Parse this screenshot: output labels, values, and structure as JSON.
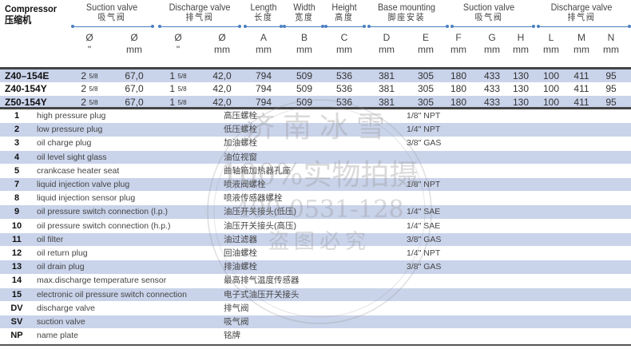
{
  "header": {
    "compressor_en": "Compressor",
    "compressor_cn": "压缩机",
    "groups": [
      {
        "en": "Suction valve",
        "cn": "吸气阀"
      },
      {
        "en": "Discharge valve",
        "cn": "排气阀"
      },
      {
        "en": "Length",
        "cn": "长度"
      },
      {
        "en": "Width",
        "cn": "宽度"
      },
      {
        "en": "Height",
        "cn": "高度"
      },
      {
        "en": "Base mounting",
        "cn": "脚座安装"
      },
      {
        "en": "Suction valve",
        "cn": "吸气阀"
      },
      {
        "en": "Discharge valve",
        "cn": "排气阀"
      }
    ],
    "units": [
      {
        "a": "Ø",
        "b": "\""
      },
      {
        "a": "Ø",
        "b": "mm"
      },
      {
        "a": "Ø",
        "b": "\""
      },
      {
        "a": "Ø",
        "b": "mm"
      },
      {
        "a": "A",
        "b": "mm"
      },
      {
        "a": "B",
        "b": "mm"
      },
      {
        "a": "C",
        "b": "mm"
      },
      {
        "a": "D",
        "b": "mm"
      },
      {
        "a": "E",
        "b": "mm"
      },
      {
        "a": "F",
        "b": "mm"
      },
      {
        "a": "G",
        "b": "mm"
      },
      {
        "a": "H",
        "b": "mm"
      },
      {
        "a": "L",
        "b": "mm"
      },
      {
        "a": "M",
        "b": "mm"
      },
      {
        "a": "N",
        "b": "mm"
      }
    ]
  },
  "models": [
    {
      "name": "Z40–154E",
      "suction_in": "2",
      "suction_frac": "5/8",
      "suction_mm": "67,0",
      "discharge_in": "1",
      "discharge_frac": "5/8",
      "discharge_mm": "42,0",
      "A": "794",
      "B": "509",
      "C": "536",
      "D": "381",
      "E": "305",
      "F": "180",
      "G": "433",
      "H": "130",
      "L": "100",
      "M": "411",
      "N": "95"
    },
    {
      "name": "Z40-154Y",
      "suction_in": "2",
      "suction_frac": "5/8",
      "suction_mm": "67,0",
      "discharge_in": "1",
      "discharge_frac": "5/8",
      "discharge_mm": "42,0",
      "A": "794",
      "B": "509",
      "C": "536",
      "D": "381",
      "E": "305",
      "F": "180",
      "G": "433",
      "H": "130",
      "L": "100",
      "M": "411",
      "N": "95"
    },
    {
      "name": "Z50-154Y",
      "suction_in": "2",
      "suction_frac": "5/8",
      "suction_mm": "67,0",
      "discharge_in": "1",
      "discharge_frac": "5/8",
      "discharge_mm": "42,0",
      "A": "794",
      "B": "509",
      "C": "536",
      "D": "381",
      "E": "305",
      "F": "180",
      "G": "433",
      "H": "130",
      "L": "100",
      "M": "411",
      "N": "95"
    }
  ],
  "legend": [
    {
      "n": "1",
      "en": "high pressure plug",
      "zh": "高压螺栓",
      "size": "1/8\" NPT"
    },
    {
      "n": "2",
      "en": "low pressure plug",
      "zh": "低压螺栓",
      "size": "1/4\" NPT"
    },
    {
      "n": "3",
      "en": "oil charge plug",
      "zh": "加油螺栓",
      "size": "3/8\" GAS"
    },
    {
      "n": "4",
      "en": "oil level sight glass",
      "zh": "油位视窗",
      "size": ""
    },
    {
      "n": "5",
      "en": "crankcase heater seat",
      "zh": "曲轴箱加热器孔座",
      "size": ""
    },
    {
      "n": "7",
      "en": "liquid injection valve plug",
      "zh": "喷液阀螺栓",
      "size": "1/8\" NPT"
    },
    {
      "n": "8",
      "en": "liquid injection sensor plug",
      "zh": "喷液传感器螺栓",
      "size": ""
    },
    {
      "n": "9",
      "en": "oil pressure switch connection (l.p.)",
      "zh": "油压开关接头(低压)",
      "size": "1/4\" SAE"
    },
    {
      "n": "10",
      "en": "oil pressure switch connection (h.p.)",
      "zh": "油压开关接头(高压)",
      "size": "1/4\" SAE"
    },
    {
      "n": "11",
      "en": "oil filter",
      "zh": "油过滤器",
      "size": "3/8\" GAS"
    },
    {
      "n": "12",
      "en": "oil return plug",
      "zh": "回油螺栓",
      "size": "1/4\" NPT"
    },
    {
      "n": "13",
      "en": "oil drain plug",
      "zh": "排油螺栓",
      "size": "3/8\" GAS"
    },
    {
      "n": "14",
      "en": "max.discharge temperature sensor",
      "zh": "最高排气温度传感器",
      "size": ""
    },
    {
      "n": "15",
      "en": "electronic oil pressure switch connection",
      "zh": "电子式油压开关接头",
      "size": ""
    },
    {
      "n": "DV",
      "en": "discharge valve",
      "zh": "排气阀",
      "size": ""
    },
    {
      "n": "SV",
      "en": "suction valve",
      "zh": "吸气阀",
      "size": ""
    },
    {
      "n": "NP",
      "en": "name plate",
      "zh": "铭牌",
      "size": ""
    }
  ],
  "watermark": [
    "济南冰雪",
    "100%实物拍摄",
    "400-0531-128",
    "盗图必究"
  ],
  "colors": {
    "row_highlight": "#c9d3ea",
    "group_line": "#4a7fc0",
    "rule": "#444444"
  }
}
